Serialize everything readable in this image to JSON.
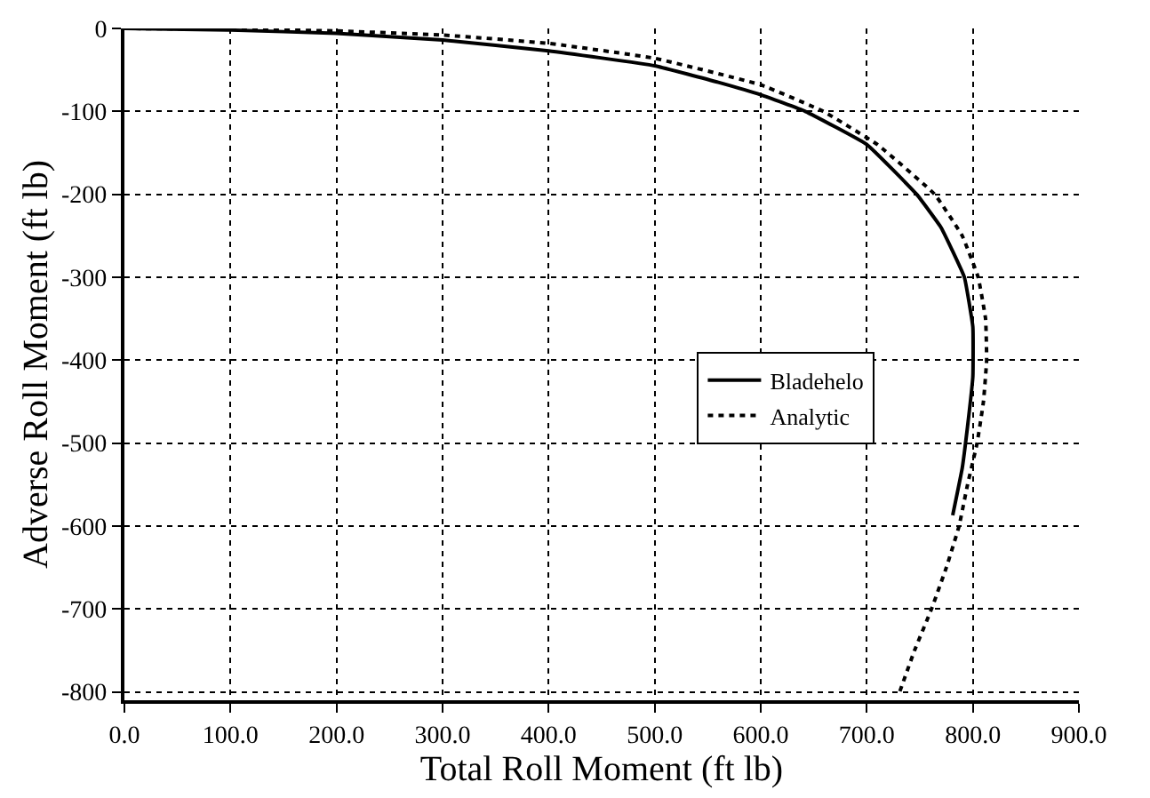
{
  "chart_data": {
    "type": "line",
    "xlabel": "Total Roll Moment (ft lb)",
    "ylabel": "Adverse Roll Moment (ft lb)",
    "xlim": [
      0,
      900
    ],
    "ylim": [
      -810,
      0
    ],
    "xticks": [
      {
        "value": 0,
        "label": "0.0"
      },
      {
        "value": 100,
        "label": "100.0"
      },
      {
        "value": 200,
        "label": "200.0"
      },
      {
        "value": 300,
        "label": "300.0"
      },
      {
        "value": 400,
        "label": "400.0"
      },
      {
        "value": 500,
        "label": "500.0"
      },
      {
        "value": 600,
        "label": "600.0"
      },
      {
        "value": 700,
        "label": "700.0"
      },
      {
        "value": 800,
        "label": "800.0"
      },
      {
        "value": 900,
        "label": "900.0"
      }
    ],
    "yticks": [
      0,
      -100,
      -200,
      -300,
      -400,
      -500,
      -600,
      -700,
      -800
    ],
    "grid": true,
    "legend": "right",
    "marker": "none",
    "series": [
      {
        "name": "Bladehelo",
        "color": "#000000",
        "line_style": "solid",
        "x": [
          0,
          100,
          200,
          300,
          400,
          500,
          560,
          600,
          642,
          700,
          747,
          770,
          792,
          800,
          800,
          795,
          790,
          781
        ],
        "values": [
          0,
          -2,
          -6,
          -14,
          -27,
          -45,
          -65,
          -80,
          -100,
          -140,
          -200,
          -240,
          -300,
          -360,
          -420,
          -480,
          -530,
          -587
        ]
      },
      {
        "name": "Analytic",
        "color": "#000000",
        "line_style": "dotted",
        "x": [
          0,
          100,
          200,
          300,
          400,
          500,
          600,
          659,
          710,
          764,
          790,
          805,
          812,
          813,
          810,
          804,
          795,
          787,
          775,
          761,
          745,
          731
        ],
        "values": [
          0,
          -1,
          -3,
          -8,
          -18,
          -36,
          -68,
          -100,
          -140,
          -200,
          -250,
          -300,
          -350,
          -400,
          -450,
          -500,
          -550,
          -600,
          -650,
          -700,
          -750,
          -800
        ]
      }
    ]
  }
}
